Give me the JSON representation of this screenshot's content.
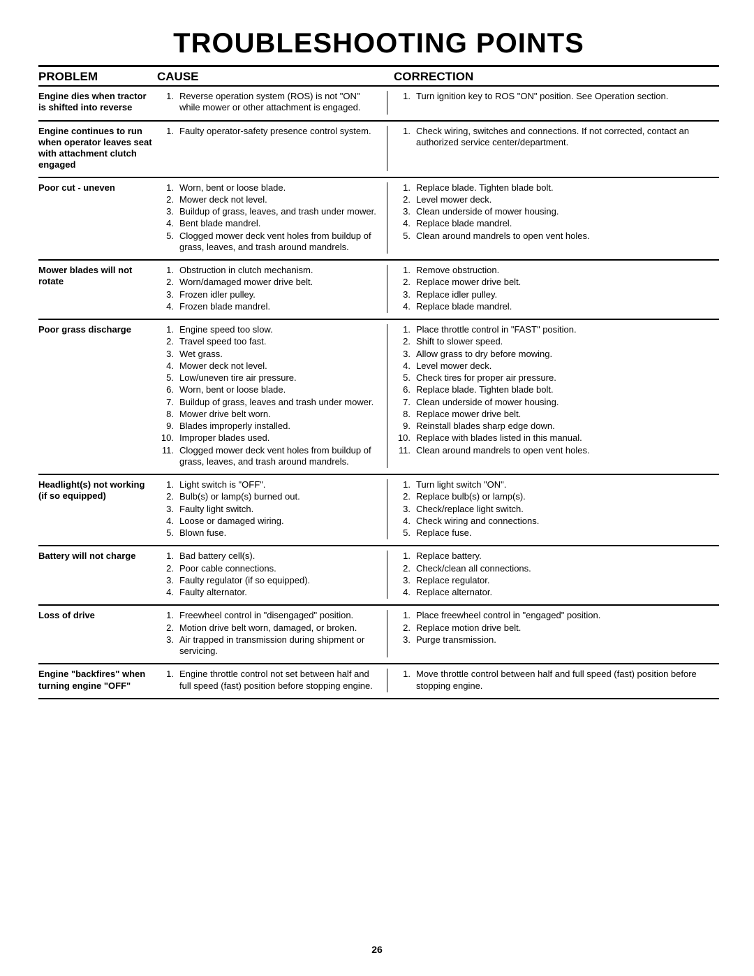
{
  "title": "TROUBLESHOOTING POINTS",
  "headers": {
    "problem": "PROBLEM",
    "cause": "CAUSE",
    "correction": "CORRECTION"
  },
  "page_number": "26",
  "sections": [
    {
      "problem": "Engine dies when tractor is shifted into reverse",
      "causes": [
        "Reverse operation system (ROS) is not \"ON\" while mower or other attachment is engaged."
      ],
      "corrections": [
        "Turn ignition key to ROS \"ON\" position. See Operation section."
      ]
    },
    {
      "problem": "Engine continues to run when operator leaves seat with attachment clutch engaged",
      "causes": [
        "Faulty operator-safety presence control system."
      ],
      "corrections": [
        "Check wiring, switches and connections. If not corrected, contact an authorized service center/department."
      ]
    },
    {
      "problem": "Poor cut - uneven",
      "causes": [
        "Worn, bent or loose blade.",
        "Mower deck not level.",
        "Buildup of grass, leaves, and trash under mower.",
        "Bent blade mandrel.",
        "Clogged mower deck vent holes from buildup of grass, leaves, and trash around mandrels."
      ],
      "corrections": [
        "Replace blade. Tighten blade bolt.",
        "Level mower deck.",
        "Clean underside of mower housing.",
        "Replace blade mandrel.",
        "Clean around mandrels to open vent holes."
      ]
    },
    {
      "problem": "Mower blades will not rotate",
      "causes": [
        "Obstruction in clutch mechanism.",
        "Worn/damaged mower drive belt.",
        "Frozen idler pulley.",
        "Frozen blade mandrel."
      ],
      "corrections": [
        "Remove obstruction.",
        "Replace mower drive belt.",
        "Replace idler pulley.",
        "Replace blade mandrel."
      ]
    },
    {
      "problem": "Poor grass discharge",
      "causes": [
        "Engine speed too slow.",
        "Travel speed too fast.",
        "Wet grass.",
        "Mower deck not level.",
        "Low/uneven tire air pressure.",
        "Worn, bent or loose blade.",
        "Buildup of grass, leaves and trash under mower.",
        "Mower drive belt worn.",
        "Blades improperly installed.",
        "Improper blades used.",
        "Clogged mower deck vent holes from buildup of grass, leaves, and trash around mandrels."
      ],
      "corrections": [
        "Place throttle control in \"FAST\" position.",
        "Shift to slower speed.",
        "Allow grass to dry before mowing.",
        "Level mower deck.",
        "Check tires for proper air pressure.",
        "Replace blade. Tighten blade bolt.",
        "Clean underside of mower housing.",
        "Replace mower drive belt.",
        "Reinstall blades sharp edge down.",
        "Replace with blades listed in this manual.",
        "Clean around mandrels to open vent holes."
      ]
    },
    {
      "problem": "Headlight(s) not working (if so equipped)",
      "causes": [
        "Light switch is \"OFF\".",
        "Bulb(s) or lamp(s) burned out.",
        "Faulty light switch.",
        "Loose or damaged wiring.",
        "Blown fuse."
      ],
      "corrections": [
        "Turn light switch \"ON\".",
        "Replace bulb(s) or lamp(s).",
        "Check/replace light switch.",
        "Check wiring and connections.",
        "Replace fuse."
      ]
    },
    {
      "problem": "Battery will not charge",
      "causes": [
        "Bad battery cell(s).",
        "Poor cable connections.",
        "Faulty regulator (if so equipped).",
        "Faulty alternator."
      ],
      "corrections": [
        "Replace battery.",
        "Check/clean all connections.",
        "Replace regulator.",
        "Replace alternator."
      ]
    },
    {
      "problem": "Loss of drive",
      "causes": [
        "Freewheel control in \"disengaged\" position.",
        "Motion drive belt worn, damaged, or broken.",
        "Air trapped in transmission during shipment or servicing."
      ],
      "corrections": [
        "Place freewheel control in \"engaged\" position.",
        "Replace motion drive belt.",
        "Purge transmission."
      ]
    },
    {
      "problem": "Engine \"backfires\" when turning engine \"OFF\"",
      "causes": [
        "Engine throttle control not set between half and full speed (fast) position before stopping engine."
      ],
      "corrections": [
        "Move throttle control between half and full speed (fast) position before stopping engine."
      ]
    }
  ]
}
